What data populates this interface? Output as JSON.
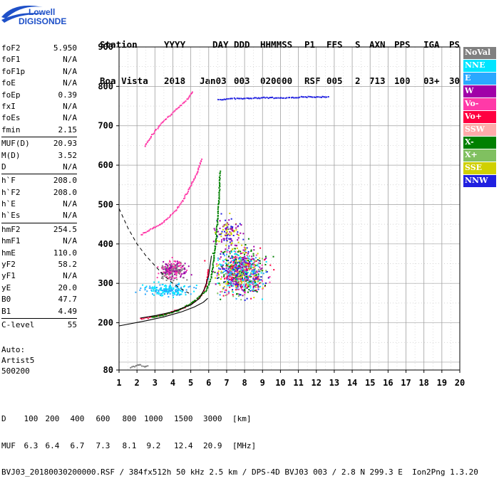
{
  "logo": {
    "line1": "Lowell",
    "line2": "DIGISONDE",
    "icon": "digisonde-swoosh-logo"
  },
  "header": {
    "labels": [
      "Station",
      "YYYY",
      "DAY",
      "DDD",
      "HHMMSS",
      "P1",
      "FFS",
      "S",
      "AXN",
      "PPS",
      "IGA",
      "PS"
    ],
    "values": [
      "Boa Vista",
      "2018",
      "Jan03",
      "003",
      "020000",
      "RSF",
      "005",
      "2",
      "713",
      "100",
      "03+",
      "30"
    ]
  },
  "params": [
    [
      [
        "foF2",
        "5.950"
      ],
      [
        "foF1",
        "N/A"
      ],
      [
        "foF1p",
        "N/A"
      ],
      [
        "foE",
        "N/A"
      ],
      [
        "foEp",
        "0.39"
      ],
      [
        "fxI",
        "N/A"
      ],
      [
        "foEs",
        "N/A"
      ],
      [
        "fmin",
        "2.15"
      ]
    ],
    [
      [
        "MUF(D)",
        "20.93"
      ],
      [
        "M(D)",
        "3.52"
      ],
      [
        "D",
        "N/A"
      ]
    ],
    [
      [
        "h`F",
        "208.0"
      ],
      [
        "h`F2",
        "208.0"
      ],
      [
        "h`E",
        "N/A"
      ],
      [
        "h`Es",
        "N/A"
      ]
    ],
    [
      [
        "hmF2",
        "254.5"
      ],
      [
        "hmF1",
        "N/A"
      ],
      [
        "hmE",
        "110.0"
      ],
      [
        "yF2",
        "58.2"
      ],
      [
        "yF1",
        "N/A"
      ],
      [
        "yE",
        "20.0"
      ],
      [
        "B0",
        "47.7"
      ],
      [
        "B1",
        "4.49"
      ]
    ],
    [
      [
        "C-level",
        "55"
      ]
    ]
  ],
  "auto": [
    "Auto:",
    "Artist5",
    "500200"
  ],
  "legend": [
    {
      "label": "NoVal",
      "color": "#808080"
    },
    {
      "label": "NNE",
      "color": "#00e5ff"
    },
    {
      "label": "E",
      "color": "#2aa8ff"
    },
    {
      "label": "W",
      "color": "#a000a8"
    },
    {
      "label": "Vo-",
      "color": "#ff3aa8"
    },
    {
      "label": "Vo+",
      "color": "#ff0040"
    },
    {
      "label": "SSW",
      "color": "#ffaaaa"
    },
    {
      "label": "X-",
      "color": "#008000"
    },
    {
      "label": "X+",
      "color": "#80c060"
    },
    {
      "label": "SSE",
      "color": "#d0d000"
    },
    {
      "label": "NNW",
      "color": "#2020e0"
    }
  ],
  "footer": {
    "d_label": "D",
    "d_values": [
      "100",
      "200",
      "400",
      "600",
      "800",
      "1000",
      "1500",
      "3000"
    ],
    "d_unit": "[km]",
    "muf_label": "MUF",
    "muf_values": [
      "6.3",
      "6.4",
      "6.7",
      "7.3",
      "8.1",
      "9.2",
      "12.4",
      "20.9"
    ],
    "muf_unit": "[MHz]",
    "file_line": "BVJ03_20180030200000.RSF / 384fx512h 50 kHz 2.5 km / DPS-4D BVJ03 003 / 2.8 N 299.3 E  Ion2Png 1.3.20"
  },
  "chart_data": {
    "type": "scatter",
    "xlim": [
      1,
      20
    ],
    "ylim": [
      80,
      900
    ],
    "x_ticks": [
      1,
      2,
      3,
      4,
      5,
      6,
      7,
      8,
      9,
      10,
      11,
      12,
      13,
      14,
      15,
      16,
      17,
      18,
      19,
      20
    ],
    "y_ticks": [
      80,
      200,
      300,
      400,
      500,
      600,
      700,
      800,
      900
    ],
    "y_grid": [
      100,
      150,
      200,
      250,
      300,
      350,
      400,
      450,
      500,
      550,
      600,
      650,
      700,
      750,
      800,
      850,
      900
    ],
    "grid": true,
    "traces": [
      {
        "name": "O-trace",
        "color": "#ff0040",
        "points": [
          [
            2.15,
            212
          ],
          [
            2.5,
            214
          ],
          [
            3,
            218
          ],
          [
            3.5,
            223
          ],
          [
            4,
            230
          ],
          [
            4.5,
            238
          ],
          [
            5,
            250
          ],
          [
            5.4,
            263
          ],
          [
            5.7,
            282
          ],
          [
            5.85,
            305
          ],
          [
            5.95,
            340
          ]
        ]
      },
      {
        "name": "O-upper",
        "color": "#ff3aa8",
        "points": [
          [
            2.2,
            425
          ],
          [
            2.8,
            440
          ],
          [
            3.4,
            455
          ],
          [
            4,
            480
          ],
          [
            4.5,
            510
          ],
          [
            4.9,
            545
          ],
          [
            5.3,
            580
          ],
          [
            5.6,
            620
          ]
        ]
      },
      {
        "name": "O-high",
        "color": "#ff3aa8",
        "points": [
          [
            2.4,
            650
          ],
          [
            3,
            690
          ],
          [
            3.6,
            720
          ],
          [
            4.2,
            745
          ],
          [
            4.8,
            770
          ],
          [
            5.1,
            790
          ]
        ]
      },
      {
        "name": "X-trace",
        "color": "#008000",
        "points": [
          [
            2.8,
            215
          ],
          [
            3.5,
            222
          ],
          [
            4.2,
            232
          ],
          [
            4.8,
            246
          ],
          [
            5.3,
            262
          ],
          [
            5.8,
            282
          ],
          [
            6.1,
            315
          ],
          [
            6.3,
            380
          ],
          [
            6.45,
            460
          ],
          [
            6.55,
            530
          ],
          [
            6.6,
            590
          ]
        ]
      },
      {
        "name": "X-high",
        "color": "#2020e0",
        "points": [
          [
            6.5,
            768
          ],
          [
            7.3,
            770
          ],
          [
            8,
            771
          ],
          [
            8.6,
            772
          ],
          [
            9.2,
            773
          ],
          [
            10,
            772
          ],
          [
            11.2,
            774
          ],
          [
            12.7,
            775
          ]
        ]
      },
      {
        "name": "Es-low",
        "color": "#808080",
        "points": [
          [
            1.6,
            88
          ],
          [
            1.9,
            92
          ],
          [
            2.1,
            95
          ],
          [
            2.4,
            90
          ],
          [
            2.6,
            93
          ]
        ]
      }
    ],
    "clouds": [
      {
        "name": "spread-F",
        "cx": 7.8,
        "cy": 330,
        "rx": 1.6,
        "ry": 70,
        "colors": [
          "#00e5ff",
          "#2aa8ff",
          "#a000a8",
          "#ff3aa8",
          "#ff0040",
          "#008000",
          "#80c060",
          "#d0d000",
          "#2020e0"
        ],
        "n": 900
      },
      {
        "name": "oblique",
        "cx": 4.0,
        "cy": 335,
        "rx": 0.9,
        "ry": 28,
        "colors": [
          "#a000a8",
          "#ff3aa8",
          "#808080"
        ],
        "n": 250
      },
      {
        "name": "low-cyan",
        "cx": 3.7,
        "cy": 285,
        "rx": 1.6,
        "ry": 20,
        "colors": [
          "#00e5ff",
          "#2aa8ff"
        ],
        "n": 180
      },
      {
        "name": "upper-blob",
        "cx": 7.0,
        "cy": 430,
        "rx": 0.8,
        "ry": 45,
        "colors": [
          "#a000a8",
          "#2020e0",
          "#d0d000"
        ],
        "n": 120
      }
    ],
    "profile": {
      "color": "#000000",
      "points": [
        [
          1,
          192
        ],
        [
          2.5,
          205
        ],
        [
          3.5,
          215
        ],
        [
          4.5,
          228
        ],
        [
          5.2,
          240
        ],
        [
          5.7,
          252
        ],
        [
          5.95,
          262
        ]
      ]
    },
    "profile_upper": {
      "color": "#000000",
      "points": [
        [
          2.2,
          212
        ],
        [
          3,
          218
        ],
        [
          4,
          228
        ],
        [
          5,
          245
        ],
        [
          5.5,
          262
        ],
        [
          5.8,
          290
        ],
        [
          6.0,
          320
        ],
        [
          6.15,
          370
        ]
      ]
    },
    "dashed": {
      "color": "#000000",
      "points": [
        [
          1,
          490
        ],
        [
          1.5,
          440
        ],
        [
          2,
          400
        ],
        [
          2.5,
          370
        ],
        [
          3,
          345
        ],
        [
          3.5,
          320
        ],
        [
          4,
          300
        ],
        [
          4.5,
          285
        ],
        [
          4.9,
          275
        ]
      ]
    }
  }
}
